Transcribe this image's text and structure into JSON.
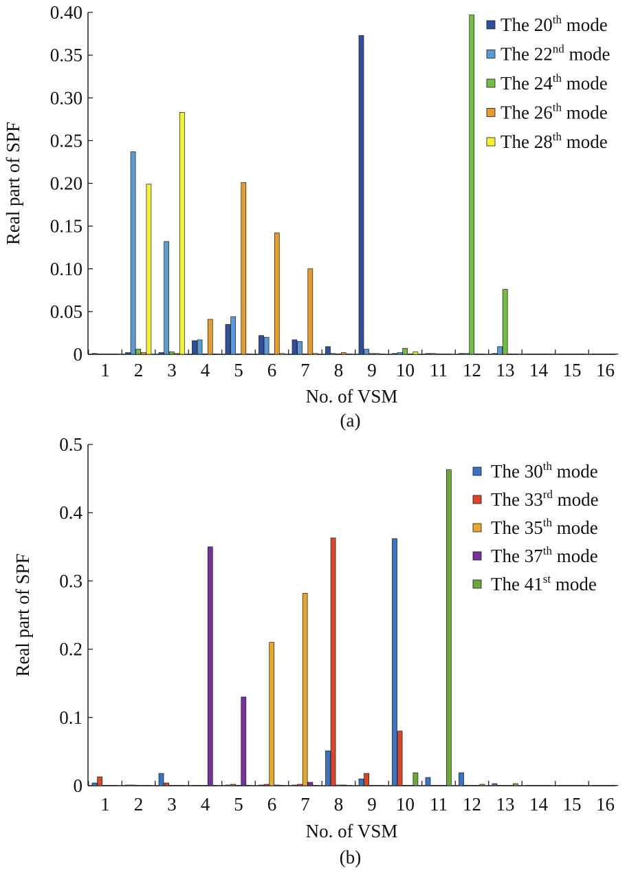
{
  "chart_data": [
    {
      "type": "bar",
      "caption": "(a)",
      "xlabel": "No. of VSM",
      "ylabel": "Real part of SPF",
      "ylim": [
        0,
        0.4
      ],
      "yticks": [
        "0",
        "0.05",
        "0.10",
        "0.15",
        "0.20",
        "0.25",
        "0.30",
        "0.35",
        "0.40"
      ],
      "categories": [
        "1",
        "2",
        "3",
        "4",
        "5",
        "6",
        "7",
        "8",
        "9",
        "10",
        "11",
        "12",
        "13",
        "14",
        "15",
        "16"
      ],
      "legend_position": "top-right",
      "grid": false,
      "series": [
        {
          "name": "The 20th mode",
          "label_main": "The 20",
          "label_sup": "th",
          "label_end": " mode",
          "color": "#2e4f9e",
          "values": [
            0.001,
            0.002,
            0.002,
            0.016,
            0.035,
            0.022,
            0.017,
            0.009,
            0.373,
            0.001,
            0.001,
            0.001,
            0.001,
            0.0005,
            0.0005,
            0.0005
          ]
        },
        {
          "name": "The 22nd mode",
          "label_main": "The 22",
          "label_sup": "nd",
          "label_end": " mode",
          "color": "#5b9bd5",
          "values": [
            0.0005,
            0.237,
            0.132,
            0.017,
            0.044,
            0.02,
            0.015,
            0.001,
            0.006,
            0.002,
            0.001,
            0.001,
            0.009,
            0.0005,
            0.0005,
            0.0005
          ]
        },
        {
          "name": "The 24th mode",
          "label_main": "The 24",
          "label_sup": "th",
          "label_end": " mode",
          "color": "#70bf41",
          "values": [
            0.0005,
            0.006,
            0.003,
            0.0005,
            0.0005,
            0.0005,
            0.0005,
            0.0005,
            0.001,
            0.007,
            0.0005,
            0.397,
            0.076,
            0.0005,
            0.0005,
            0.0005
          ]
        },
        {
          "name": "The 26th mode",
          "label_main": "The 26",
          "label_sup": "th",
          "label_end": " mode",
          "color": "#e89b2e",
          "values": [
            0.0005,
            0.002,
            0.001,
            0.041,
            0.201,
            0.142,
            0.1,
            0.002,
            0.001,
            0.0005,
            0.0005,
            0.0005,
            0.0005,
            0.0005,
            0.0005,
            0.0005
          ]
        },
        {
          "name": "The 28th mode",
          "label_main": "The 28",
          "label_sup": "th",
          "label_end": " mode",
          "color": "#f3f03a",
          "values": [
            0.0005,
            0.199,
            0.283,
            0.0005,
            0.0005,
            0.001,
            0.001,
            0.0005,
            0.0005,
            0.003,
            0.0005,
            0.0005,
            0.0005,
            0.0005,
            0.0005,
            0.0005
          ]
        }
      ]
    },
    {
      "type": "bar",
      "caption": "(b)",
      "xlabel": "No. of VSM",
      "ylabel": "Real part of SPF",
      "ylim": [
        0,
        0.5
      ],
      "yticks": [
        "0",
        "0.1",
        "0.2",
        "0.3",
        "0.4",
        "0.5"
      ],
      "categories": [
        "1",
        "2",
        "3",
        "4",
        "5",
        "6",
        "7",
        "8",
        "9",
        "10",
        "11",
        "12",
        "13",
        "14",
        "15",
        "16"
      ],
      "legend_position": "top-right",
      "grid": false,
      "series": [
        {
          "name": "The 30th mode",
          "label_main": "The 30",
          "label_sup": "th",
          "label_end": " mode",
          "color": "#3a72c4",
          "values": [
            0.004,
            0.001,
            0.018,
            0.0005,
            0.001,
            0.001,
            0.001,
            0.051,
            0.01,
            0.362,
            0.012,
            0.019,
            0.003,
            0.0005,
            0.0005,
            0.0005
          ]
        },
        {
          "name": "The 33rd mode",
          "label_main": "The 33",
          "label_sup": "rd",
          "label_end": " mode",
          "color": "#d9472b",
          "values": [
            0.013,
            0.001,
            0.004,
            0.0005,
            0.002,
            0.002,
            0.002,
            0.363,
            0.018,
            0.08,
            0.0005,
            0.0005,
            0.0005,
            0.0005,
            0.0005,
            0.0005
          ]
        },
        {
          "name": "The 35th mode",
          "label_main": "The 35",
          "label_sup": "th",
          "label_end": " mode",
          "color": "#e8a530",
          "values": [
            0.0005,
            0.0005,
            0.0005,
            0.0005,
            0.0005,
            0.21,
            0.282,
            0.001,
            0.0005,
            0.0005,
            0.0005,
            0.0005,
            0.0005,
            0.0005,
            0.0005,
            0.0005
          ]
        },
        {
          "name": "The 37th mode",
          "label_main": "The 37",
          "label_sup": "th",
          "label_end": " mode",
          "color": "#7a2f9e",
          "values": [
            0.0005,
            0.0005,
            0.0005,
            0.35,
            0.13,
            0.001,
            0.005,
            0.001,
            0.0005,
            0.0005,
            0.0005,
            0.0005,
            0.0005,
            0.0005,
            0.0005,
            0.0005
          ]
        },
        {
          "name": "The 41st mode",
          "label_main": "The 41",
          "label_sup": "st",
          "label_end": " mode",
          "color": "#6aa83a",
          "values": [
            0.0005,
            0.0005,
            0.0005,
            0.0005,
            0.0005,
            0.0005,
            0.0005,
            0.0005,
            0.0005,
            0.019,
            0.463,
            0.002,
            0.003,
            0.0005,
            0.0005,
            0.0005
          ]
        }
      ]
    }
  ]
}
